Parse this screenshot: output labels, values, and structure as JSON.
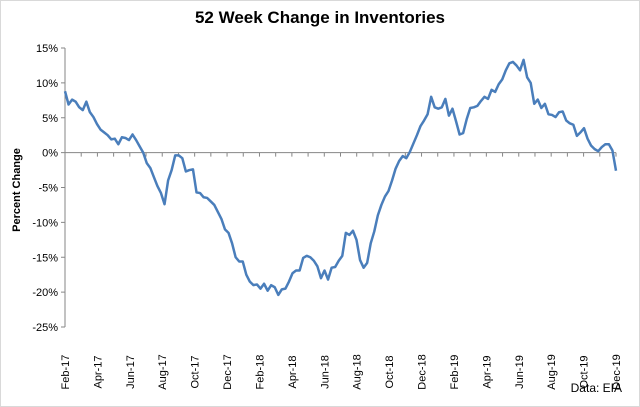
{
  "chart_data": {
    "type": "line",
    "title": "52 Week Change in Inventories",
    "ylabel": "Percent Change",
    "xlabel": "",
    "source_note": "Data: EIA",
    "ylim": [
      -25,
      15
    ],
    "y_ticks": [
      "15%",
      "10%",
      "5%",
      "0%",
      "-5%",
      "-10%",
      "-15%",
      "-20%",
      "-25%"
    ],
    "y_tick_values": [
      15,
      10,
      5,
      0,
      -5,
      -10,
      -15,
      -20,
      -25
    ],
    "x_ticks": [
      "Feb-17",
      "Apr-17",
      "Jun-17",
      "Aug-17",
      "Oct-17",
      "Dec-17",
      "Feb-18",
      "Apr-18",
      "Jun-18",
      "Aug-18",
      "Oct-18",
      "Dec-18",
      "Feb-19",
      "Apr-19",
      "Jun-19",
      "Aug-19",
      "Oct-19",
      "Dec-19"
    ],
    "grid": false,
    "line_color": "#4a7ebb",
    "series": [
      {
        "values": [
          8.8,
          6.9,
          7.6,
          7.3,
          6.5,
          6.1,
          7.3,
          5.8,
          5.1,
          4.1,
          3.3,
          2.9,
          2.5,
          1.9,
          2.0,
          1.2,
          2.2,
          2.1,
          1.8,
          2.6,
          1.8,
          0.9,
          0.0,
          -1.5,
          -2.2,
          -3.5,
          -4.8,
          -5.8,
          -7.4,
          -4.0,
          -2.5,
          -0.4,
          -0.4,
          -0.8,
          -2.7,
          -2.5,
          -2.4,
          -5.7,
          -5.8,
          -6.4,
          -6.5,
          -7.0,
          -7.5,
          -8.5,
          -9.5,
          -11.0,
          -11.5,
          -13.0,
          -15.0,
          -15.6,
          -15.6,
          -17.5,
          -18.5,
          -19.0,
          -18.9,
          -19.5,
          -18.8,
          -19.8,
          -19.0,
          -19.3,
          -20.4,
          -19.6,
          -19.5,
          -18.5,
          -17.3,
          -16.9,
          -16.9,
          -15.1,
          -14.8,
          -15.0,
          -15.5,
          -16.3,
          -18.0,
          -16.9,
          -18.2,
          -16.5,
          -16.4,
          -15.5,
          -14.8,
          -11.5,
          -11.8,
          -11.2,
          -12.5,
          -15.4,
          -16.5,
          -15.8,
          -13.0,
          -11.3,
          -9.0,
          -7.5,
          -6.3,
          -5.5,
          -4.0,
          -2.3,
          -1.2,
          -0.5,
          -0.8,
          0.1,
          1.3,
          2.5,
          3.8,
          4.6,
          5.5,
          8.0,
          6.5,
          6.3,
          6.5,
          7.7,
          5.3,
          6.3,
          4.5,
          2.6,
          2.8,
          4.8,
          6.4,
          6.5,
          6.7,
          7.4,
          8.0,
          7.7,
          9.0,
          8.7,
          9.8,
          10.5,
          11.8,
          12.8,
          13.0,
          12.5,
          11.8,
          13.3,
          10.8,
          10.0,
          7.0,
          7.6,
          6.4,
          7.0,
          5.5,
          5.4,
          5.1,
          5.8,
          5.9,
          4.6,
          4.2,
          4.0,
          2.4,
          2.9,
          3.5,
          2.0,
          1.0,
          0.5,
          0.2,
          0.8,
          1.2,
          1.2,
          0.3,
          -2.6
        ]
      }
    ]
  }
}
